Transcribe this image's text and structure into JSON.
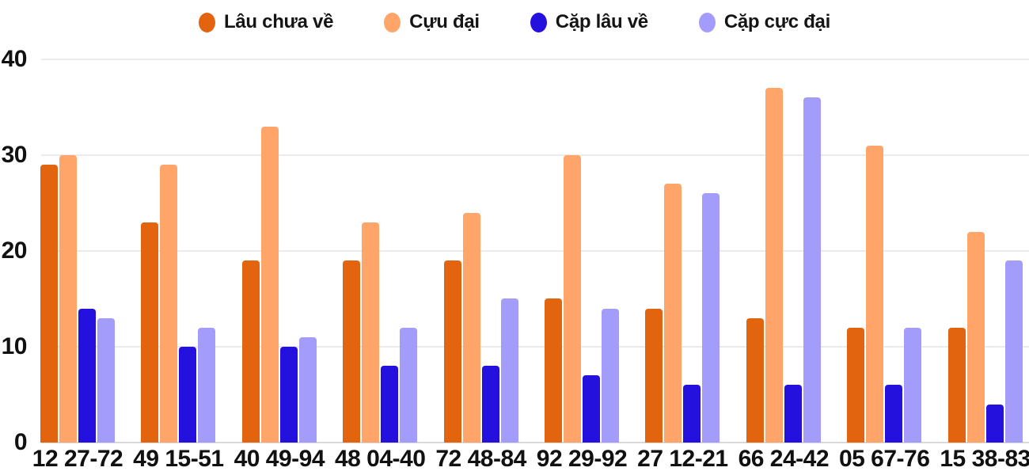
{
  "chart_data": {
    "type": "bar",
    "title": "",
    "xlabel": "",
    "ylabel": "",
    "ylim": [
      0,
      40
    ],
    "yticks": [
      0,
      10,
      20,
      30,
      40
    ],
    "grid": true,
    "legend_position": "top",
    "background_color": "#ffffff",
    "axis_text_color": "#111111",
    "gridline_color": "#ebebeb",
    "categories": [
      "12 27-72",
      "49 15-51",
      "40 49-94",
      "48 04-40",
      "72 48-84",
      "92 29-92",
      "27 12-21",
      "66 24-42",
      "05 67-76",
      "15 38-83"
    ],
    "series": [
      {
        "name": "Lâu chưa về",
        "color": "#e2640f",
        "values": [
          29,
          23,
          19,
          19,
          19,
          15,
          14,
          13,
          12,
          12
        ]
      },
      {
        "name": "Cựu đại",
        "color": "#ffa569",
        "values": [
          30,
          29,
          33,
          23,
          24,
          30,
          27,
          37,
          31,
          22
        ]
      },
      {
        "name": "Cặp lâu về",
        "color": "#2411dd",
        "values": [
          14,
          10,
          10,
          8,
          8,
          7,
          6,
          6,
          6,
          4
        ]
      },
      {
        "name": "Cặp cực đại",
        "color": "#a49cfa",
        "values": [
          13,
          12,
          11,
          12,
          15,
          14,
          26,
          36,
          12,
          19
        ]
      }
    ]
  }
}
